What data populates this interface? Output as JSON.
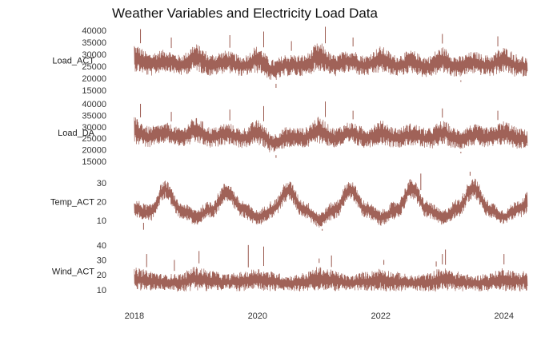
{
  "chart_data": {
    "type": "line",
    "title": "Weather Variables and Electricity Load Data",
    "color": "#9b5a4f",
    "x_ticks": [
      "2018",
      "2020",
      "2022",
      "2024"
    ],
    "x_range": [
      2017.95,
      2024.38
    ],
    "panels": [
      {
        "name": "Load_ACT",
        "y_ticks": [
          15000,
          20000,
          25000,
          30000,
          35000,
          40000
        ],
        "ylim": [
          15000,
          40000
        ],
        "x": [
          2018.0,
          2018.25,
          2018.5,
          2018.75,
          2019.0,
          2019.25,
          2019.5,
          2019.75,
          2020.0,
          2020.25,
          2020.5,
          2020.75,
          2021.0,
          2021.25,
          2021.5,
          2021.75,
          2022.0,
          2022.25,
          2022.5,
          2022.75,
          2023.0,
          2023.25,
          2023.5,
          2023.75,
          2024.0,
          2024.25,
          2024.38
        ],
        "upper": [
          36000,
          32000,
          33500,
          31000,
          36000,
          31500,
          33000,
          30500,
          35000,
          29000,
          31500,
          31000,
          36500,
          31000,
          33500,
          31000,
          35000,
          31000,
          33000,
          30500,
          34500,
          30500,
          32500,
          31000,
          34500,
          31000,
          30000
        ],
        "lower": [
          21000,
          19500,
          21500,
          20000,
          21000,
          19500,
          21000,
          19500,
          20500,
          17500,
          19500,
          19500,
          21000,
          19500,
          21000,
          19500,
          20500,
          19500,
          20500,
          19000,
          20500,
          19000,
          20500,
          19500,
          20500,
          19000,
          19500
        ],
        "peaks": [
          {
            "x": 2018.1,
            "y": 40500
          },
          {
            "x": 2019.55,
            "y": 38000
          },
          {
            "x": 2020.1,
            "y": 39500
          },
          {
            "x": 2021.1,
            "y": 42000
          },
          {
            "x": 2021.55,
            "y": 37000
          },
          {
            "x": 2023.0,
            "y": 38500
          },
          {
            "x": 2023.9,
            "y": 37500
          },
          {
            "x": 2018.6,
            "y": 37000
          },
          {
            "x": 2020.55,
            "y": 35500
          }
        ],
        "dips": [
          {
            "x": 2020.3,
            "y": 16000
          },
          {
            "x": 2023.3,
            "y": 18500
          }
        ]
      },
      {
        "name": "Load_DA",
        "y_ticks": [
          15000,
          20000,
          25000,
          30000,
          35000,
          40000
        ],
        "ylim": [
          15000,
          40000
        ],
        "x": [
          2018.0,
          2018.25,
          2018.5,
          2018.75,
          2019.0,
          2019.25,
          2019.5,
          2019.75,
          2020.0,
          2020.25,
          2020.5,
          2020.75,
          2021.0,
          2021.25,
          2021.5,
          2021.75,
          2022.0,
          2022.25,
          2022.5,
          2022.75,
          2023.0,
          2023.25,
          2023.5,
          2023.75,
          2024.0,
          2024.25,
          2024.38
        ],
        "upper": [
          35500,
          31500,
          33000,
          31000,
          35500,
          31000,
          33000,
          30500,
          34500,
          28500,
          31500,
          31000,
          36000,
          31000,
          33500,
          31000,
          34500,
          31000,
          33000,
          30500,
          34000,
          30500,
          32500,
          31000,
          34000,
          31000,
          30000
        ],
        "lower": [
          21000,
          19500,
          21500,
          20000,
          21000,
          19500,
          21000,
          19500,
          20500,
          17500,
          19500,
          19500,
          21000,
          19500,
          21000,
          19500,
          20500,
          19500,
          20500,
          19000,
          20500,
          19000,
          20500,
          19500,
          20500,
          19000,
          19500
        ],
        "peaks": [
          {
            "x": 2018.1,
            "y": 40000
          },
          {
            "x": 2019.55,
            "y": 37500
          },
          {
            "x": 2020.1,
            "y": 39000
          },
          {
            "x": 2021.1,
            "y": 41000
          },
          {
            "x": 2021.55,
            "y": 37000
          },
          {
            "x": 2023.0,
            "y": 38000
          },
          {
            "x": 2023.9,
            "y": 37000
          },
          {
            "x": 2018.6,
            "y": 36500
          }
        ],
        "dips": [
          {
            "x": 2020.3,
            "y": 16500
          },
          {
            "x": 2023.3,
            "y": 18500
          }
        ]
      },
      {
        "name": "Temp_ACT",
        "y_ticks": [
          10,
          20,
          30
        ],
        "ylim": [
          4,
          36
        ],
        "x": [
          2018.0,
          2018.25,
          2018.5,
          2018.75,
          2019.0,
          2019.25,
          2019.5,
          2019.75,
          2020.0,
          2020.25,
          2020.5,
          2020.75,
          2021.0,
          2021.25,
          2021.5,
          2021.75,
          2022.0,
          2022.25,
          2022.5,
          2022.75,
          2023.0,
          2023.25,
          2023.5,
          2023.75,
          2024.0,
          2024.25,
          2024.38
        ],
        "upper": [
          22,
          20,
          33,
          21,
          18,
          22,
          32,
          22,
          17,
          22,
          33,
          22,
          16,
          22,
          33,
          22,
          17,
          22,
          34,
          22,
          17,
          23,
          35,
          22,
          17,
          23,
          27
        ],
        "lower": [
          10,
          8,
          20,
          10,
          6,
          9,
          19,
          10,
          6,
          10,
          19,
          10,
          5,
          9,
          20,
          10,
          6,
          9,
          20,
          10,
          6,
          10,
          20,
          10,
          7,
          10,
          12
        ],
        "peaks": [
          {
            "x": 2023.45,
            "y": 36
          },
          {
            "x": 2022.65,
            "y": 35
          }
        ],
        "dips": [
          {
            "x": 2018.15,
            "y": 5
          },
          {
            "x": 2021.05,
            "y": 4.5
          }
        ]
      },
      {
        "name": "Wind_ACT",
        "y_ticks": [
          10,
          20,
          30,
          40
        ],
        "ylim": [
          4,
          41
        ],
        "x": [
          2018.0,
          2018.25,
          2018.5,
          2018.75,
          2019.0,
          2019.25,
          2019.5,
          2019.75,
          2020.0,
          2020.25,
          2020.5,
          2020.75,
          2021.0,
          2021.25,
          2021.5,
          2021.75,
          2022.0,
          2022.25,
          2022.5,
          2022.75,
          2023.0,
          2023.25,
          2023.5,
          2023.75,
          2024.0,
          2024.25,
          2024.38
        ],
        "upper": [
          27,
          25,
          22,
          23,
          28,
          25,
          22,
          24,
          27,
          24,
          21,
          23,
          28,
          25,
          21,
          24,
          27,
          24,
          21,
          23,
          27,
          24,
          21,
          23,
          27,
          24,
          25
        ],
        "lower": [
          7,
          7,
          8,
          7,
          7,
          7,
          8,
          7,
          7,
          7,
          8,
          7,
          7,
          7,
          8,
          7,
          7,
          7,
          8,
          7,
          7,
          7,
          8,
          7,
          7,
          7,
          7
        ],
        "peaks": [
          {
            "x": 2018.2,
            "y": 34
          },
          {
            "x": 2019.05,
            "y": 36
          },
          {
            "x": 2019.85,
            "y": 40
          },
          {
            "x": 2020.1,
            "y": 39
          },
          {
            "x": 2021.0,
            "y": 31
          },
          {
            "x": 2021.2,
            "y": 33
          },
          {
            "x": 2022.05,
            "y": 30
          },
          {
            "x": 2023.0,
            "y": 34
          },
          {
            "x": 2023.05,
            "y": 37
          },
          {
            "x": 2024.0,
            "y": 34
          },
          {
            "x": 2018.65,
            "y": 30
          },
          {
            "x": 2022.9,
            "y": 29
          }
        ],
        "dips": []
      }
    ]
  }
}
